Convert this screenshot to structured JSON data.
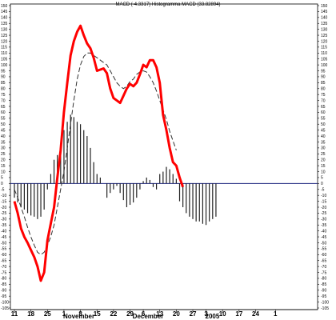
{
  "chart_data": {
    "type": "line+bar",
    "title": "MACD (-4.3317) Histogramma MACD (33.82894)",
    "xlabel": "",
    "ylabel": "",
    "ylim": [
      -105,
      150
    ],
    "y_ticks": [
      150,
      145,
      140,
      135,
      130,
      125,
      120,
      115,
      110,
      105,
      100,
      95,
      90,
      85,
      80,
      75,
      70,
      65,
      60,
      55,
      50,
      45,
      40,
      35,
      30,
      25,
      20,
      15,
      10,
      5,
      0,
      -5,
      -10,
      -15,
      -20,
      -25,
      -30,
      -35,
      -40,
      -45,
      -50,
      -55,
      -60,
      -65,
      -70,
      -75,
      -80,
      -85,
      -90,
      -95,
      -100,
      -105
    ],
    "x_ticks": [
      {
        "i": 0,
        "label": "11"
      },
      {
        "i": 5,
        "label": "18"
      },
      {
        "i": 10,
        "label": "25"
      },
      {
        "i": 15,
        "label": "1"
      },
      {
        "i": 20,
        "label": "8"
      },
      {
        "i": 25,
        "label": "15"
      },
      {
        "i": 30,
        "label": "22"
      },
      {
        "i": 35,
        "label": "29"
      },
      {
        "i": 39,
        "label": "6"
      },
      {
        "i": 44,
        "label": "13"
      },
      {
        "i": 49,
        "label": "20"
      },
      {
        "i": 54,
        "label": "27"
      },
      {
        "i": 58,
        "label": "3"
      },
      {
        "i": 63,
        "label": "10"
      },
      {
        "i": 68,
        "label": "17"
      },
      {
        "i": 73,
        "label": "24"
      },
      {
        "i": 79,
        "label": "1"
      }
    ],
    "month_labels": [
      {
        "i": 15,
        "label": "November"
      },
      {
        "i": 36,
        "label": "December"
      },
      {
        "i": 58,
        "label": "2005"
      }
    ],
    "series": [
      {
        "style": "solid-red",
        "values": [
          -15,
          -25,
          -38,
          -45,
          -50,
          -56,
          -62,
          -70,
          -82,
          -75,
          -48,
          -34,
          -20,
          5,
          28,
          60,
          85,
          108,
          120,
          128,
          133,
          125,
          118,
          114,
          106,
          95,
          96,
          97,
          93,
          80,
          72,
          70,
          68,
          74,
          80,
          84,
          82,
          85,
          92,
          100,
          98,
          104,
          104,
          98,
          85,
          58,
          45,
          30,
          18,
          15,
          5,
          -3
        ]
      },
      {
        "style": "dashed",
        "values": [
          -5,
          -12,
          -20,
          -28,
          -37,
          -45,
          -52,
          -58,
          -60,
          -58,
          -52,
          -45,
          -35,
          -20,
          -5,
          10,
          30,
          50,
          70,
          88,
          100,
          107,
          110,
          110,
          108,
          106,
          104,
          102,
          100,
          95,
          90,
          85,
          82,
          80,
          82,
          86,
          88,
          92,
          94,
          95,
          94,
          90,
          85,
          78,
          70,
          62,
          54,
          44,
          36,
          28
        ]
      }
    ],
    "histogram": {
      "x_start": 0,
      "values": [
        -12,
        -16,
        -20,
        -22,
        -25,
        -27,
        -28,
        -30,
        -28,
        -22,
        -5,
        8,
        20,
        24,
        28,
        45,
        52,
        58,
        56,
        52,
        50,
        45,
        40,
        30,
        18,
        8,
        5,
        0,
        -12,
        -8,
        -5,
        -2,
        -8,
        -14,
        -20,
        -18,
        -16,
        -12,
        -5,
        2,
        5,
        3,
        -3,
        -5,
        8,
        10,
        14,
        12,
        8,
        4,
        -15,
        -20,
        -25,
        -28,
        -30,
        -32,
        -32,
        -34,
        -35,
        -32,
        -30,
        -28
      ]
    },
    "zero_line": 0,
    "grid": false,
    "legend": "none"
  }
}
